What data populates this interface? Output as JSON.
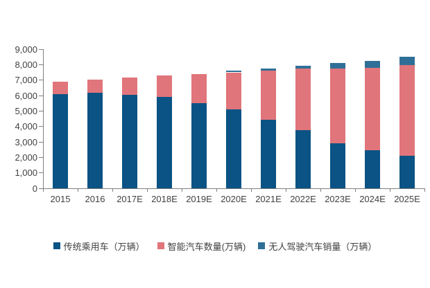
{
  "page": {
    "background": "#ffffff"
  },
  "chart_data": {
    "type": "bar",
    "stacked": true,
    "title": "",
    "xlabel": "",
    "ylabel": "",
    "categories": [
      "2015",
      "2016",
      "2017E",
      "2018E",
      "2019E",
      "2020E",
      "2021E",
      "2022E",
      "2023E",
      "2024E",
      "2025E"
    ],
    "series": [
      {
        "name": "传统乘用车（万辆）",
        "color": "#0A5384",
        "values": [
          6100,
          6200,
          6050,
          5900,
          5500,
          5100,
          4450,
          3750,
          2900,
          2450,
          2100
        ]
      },
      {
        "name": "智能汽车数量(万辆)",
        "color": "#E0757B",
        "values": [
          800,
          850,
          1100,
          1400,
          1900,
          2400,
          3150,
          4000,
          4850,
          5350,
          5850
        ]
      },
      {
        "name": "无人驾驶汽车销量（万辆）",
        "color": "#2F6F97",
        "values": [
          0,
          0,
          0,
          0,
          0,
          100,
          150,
          180,
          350,
          450,
          550
        ]
      }
    ],
    "ylim": [
      0,
      9000
    ],
    "ytick_step": 1000,
    "ytick_labels": [
      "0",
      "1,000",
      "2,000",
      "3,000",
      "4,000",
      "5,000",
      "6,000",
      "7,000",
      "8,000",
      "9,000"
    ],
    "grid": false,
    "legend_position": "bottom",
    "axis_color": "#7F7F7F",
    "label_color": "#404040"
  }
}
